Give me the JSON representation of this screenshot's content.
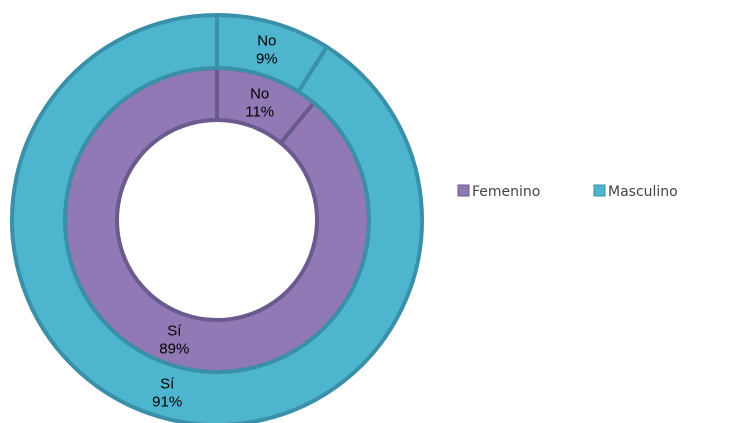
{
  "chart_data": {
    "type": "donut",
    "categories": [
      "No",
      "Sí"
    ],
    "series": [
      {
        "name": "Femenino",
        "color": "#9079b4",
        "values": [
          11,
          89
        ],
        "value_labels": [
          "11%",
          "89%"
        ]
      },
      {
        "name": "Masculino",
        "color": "#4eb5cf",
        "values": [
          9,
          91
        ],
        "value_labels": [
          "9%",
          "91%"
        ]
      }
    ],
    "legend": "right"
  }
}
